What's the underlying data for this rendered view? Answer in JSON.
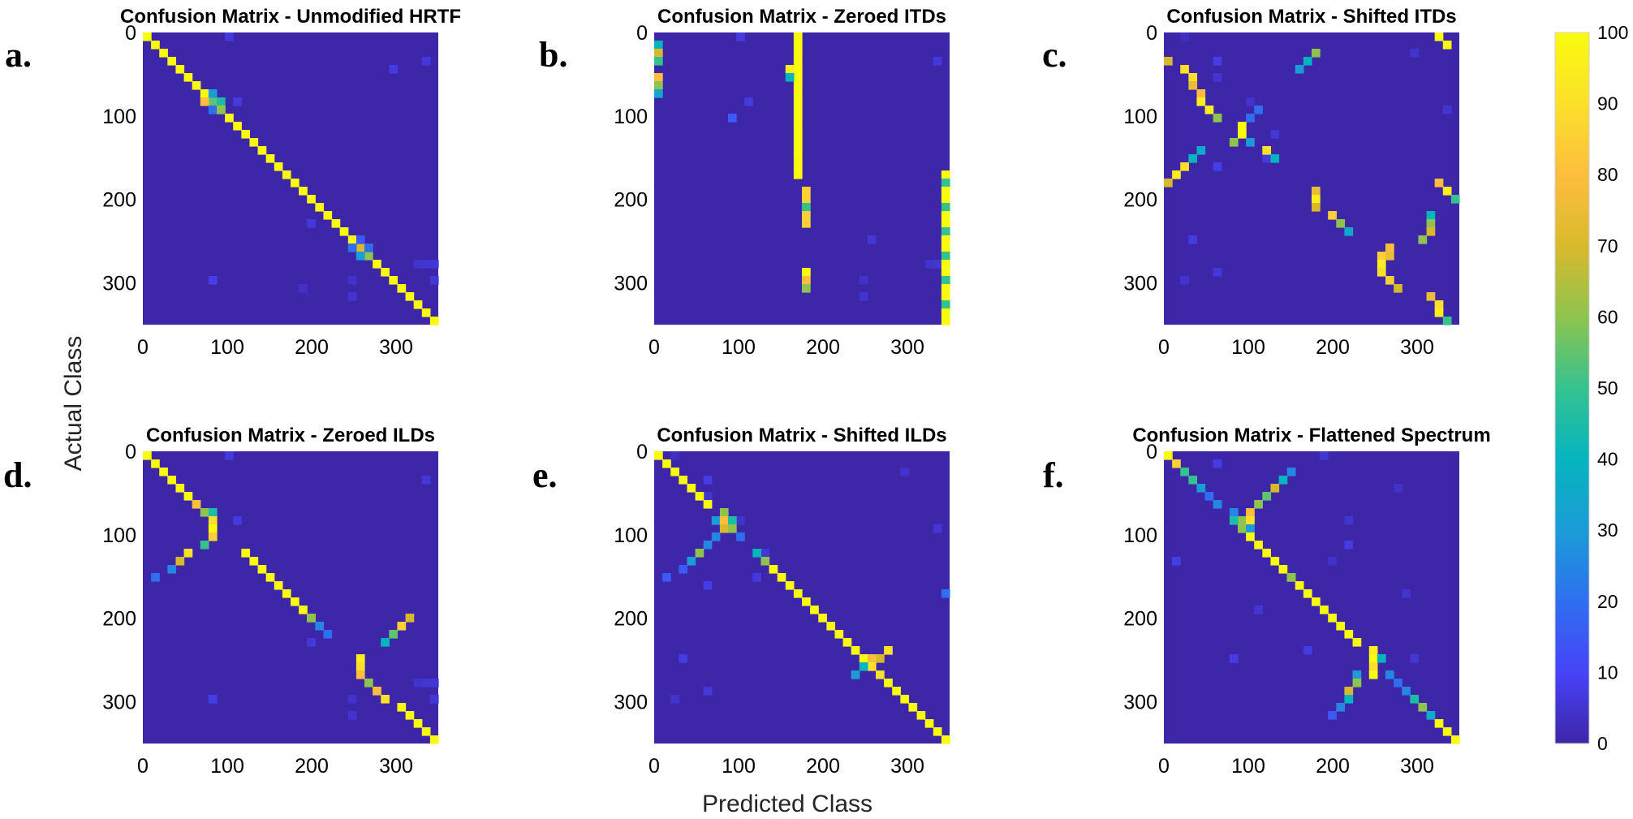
{
  "figure": {
    "xlabel": "Predicted Class",
    "ylabel": "Actual Class"
  },
  "chart_data": [
    {
      "type": "heatmap",
      "panel_label": "a.",
      "title": "Confusion Matrix - Unmodified HRTF",
      "pattern": "unmodified",
      "xlim": [
        0,
        350
      ],
      "ylim": [
        0,
        350
      ],
      "xticks": [
        0,
        100,
        200,
        300
      ],
      "yticks": [
        0,
        100,
        200,
        300
      ]
    },
    {
      "type": "heatmap",
      "panel_label": "b.",
      "title": "Confusion Matrix - Zeroed ITDs",
      "pattern": "zeroed_itd",
      "xlim": [
        0,
        350
      ],
      "ylim": [
        0,
        350
      ],
      "xticks": [
        0,
        100,
        200,
        300
      ],
      "yticks": [
        0,
        100,
        200,
        300
      ]
    },
    {
      "type": "heatmap",
      "panel_label": "c.",
      "title": "Confusion Matrix - Shifted ITDs",
      "pattern": "shifted_itd",
      "xlim": [
        0,
        350
      ],
      "ylim": [
        0,
        350
      ],
      "xticks": [
        0,
        100,
        200,
        300
      ],
      "yticks": [
        0,
        100,
        200,
        300
      ]
    },
    {
      "type": "heatmap",
      "panel_label": "d.",
      "title": "Confusion Matrix - Zeroed ILDs",
      "pattern": "zeroed_ild",
      "xlim": [
        0,
        350
      ],
      "ylim": [
        0,
        350
      ],
      "xticks": [
        0,
        100,
        200,
        300
      ],
      "yticks": [
        0,
        100,
        200,
        300
      ]
    },
    {
      "type": "heatmap",
      "panel_label": "e.",
      "title": "Confusion Matrix - Shifted ILDs",
      "pattern": "shifted_ild",
      "xlim": [
        0,
        350
      ],
      "ylim": [
        0,
        350
      ],
      "xticks": [
        0,
        100,
        200,
        300
      ],
      "yticks": [
        0,
        100,
        200,
        300
      ]
    },
    {
      "type": "heatmap",
      "panel_label": "f.",
      "title": "Confusion Matrix - Flattened Spectrum",
      "pattern": "flattened",
      "xlim": [
        0,
        350
      ],
      "ylim": [
        0,
        350
      ],
      "xticks": [
        0,
        100,
        200,
        300
      ],
      "yticks": [
        0,
        100,
        200,
        300
      ]
    }
  ],
  "colorbar": {
    "min": 0,
    "max": 100,
    "ticks": [
      0,
      10,
      20,
      30,
      40,
      50,
      60,
      70,
      80,
      90,
      100
    ],
    "colormap": [
      "#3e26a8",
      "#4743f8",
      "#2f6fef",
      "#1b9cd7",
      "#06b4bf",
      "#35c28f",
      "#8ec44e",
      "#d9b92c",
      "#fdbe3d",
      "#fbe02a",
      "#f9fb0e"
    ],
    "background_color": "#3e26a8"
  }
}
